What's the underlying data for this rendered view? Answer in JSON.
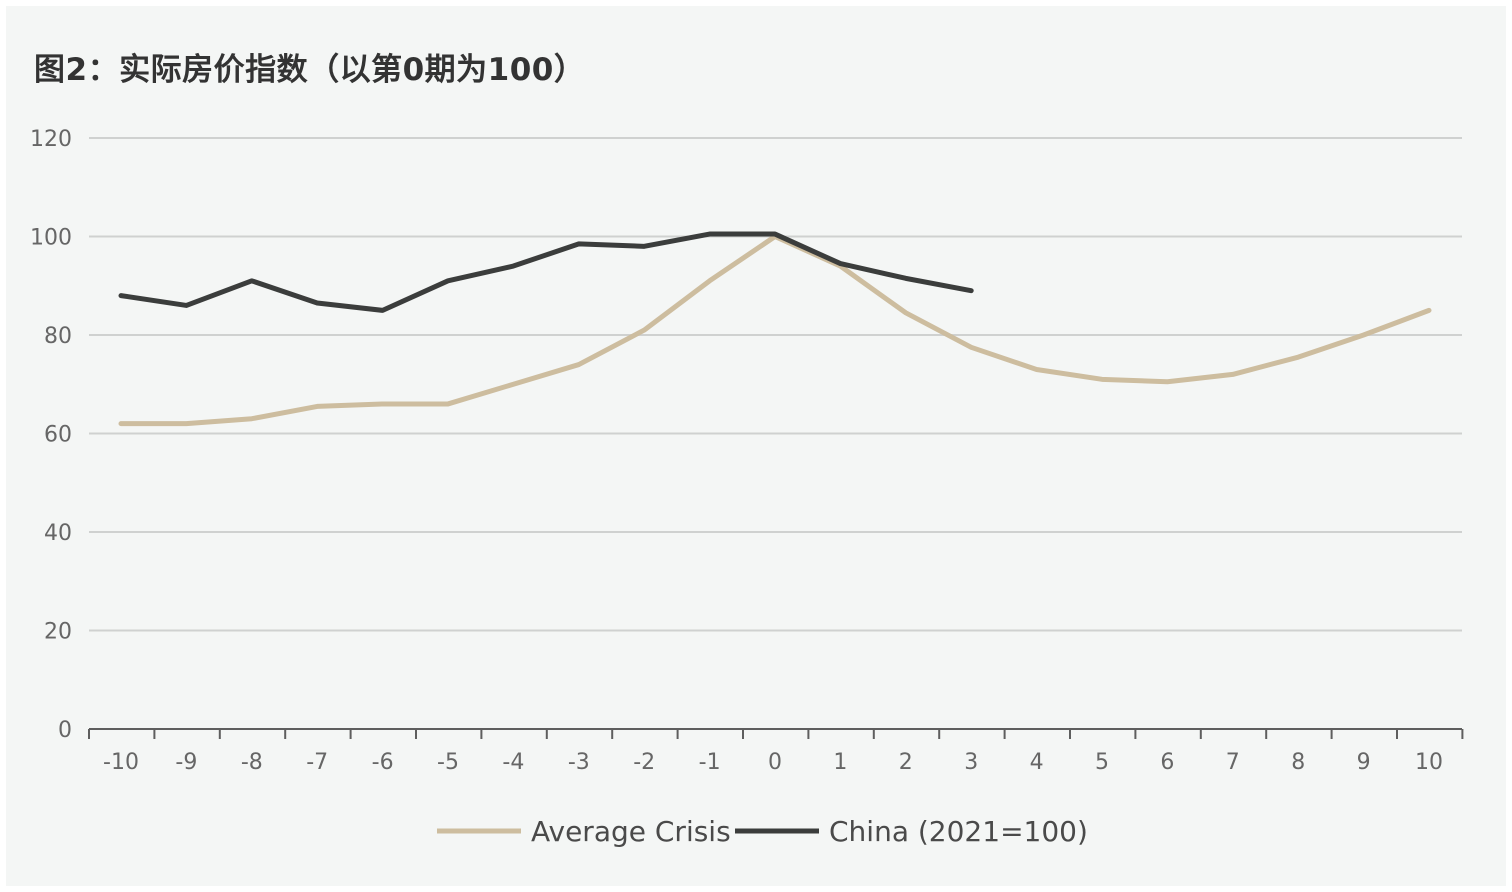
{
  "title": "图2：实际房价指数（以第0期为100）",
  "colors": {
    "average": "#cdbd9f",
    "china": "#3b3d3c",
    "grid": "#cfd1d0",
    "axis": "#5e5e5e",
    "background": "#f4f6f5"
  },
  "chart_data": {
    "type": "line",
    "title": "图2：实际房价指数（以第0期为100）",
    "xlabel": "",
    "ylabel": "",
    "x": [
      -10,
      -9,
      -8,
      -7,
      -6,
      -5,
      -4,
      -3,
      -2,
      -1,
      0,
      1,
      2,
      3,
      4,
      5,
      6,
      7,
      8,
      9,
      10
    ],
    "x_tick_labels": [
      "-10",
      "-9",
      "-8",
      "-7",
      "-6",
      "-5",
      "-4",
      "-3",
      "-2",
      "-1",
      "0",
      "1",
      "2",
      "3",
      "4",
      "5",
      "6",
      "7",
      "8",
      "9",
      "10"
    ],
    "ylim": [
      0,
      120
    ],
    "y_ticks": [
      0,
      20,
      40,
      60,
      80,
      100,
      120
    ],
    "y_tick_labels": [
      "0",
      "20",
      "40",
      "60",
      "80",
      "100",
      "120"
    ],
    "grid": true,
    "legend": "bottom",
    "series": [
      {
        "name": "Average Crisis",
        "color": "#cdbd9f",
        "x": [
          -10,
          -9,
          -8,
          -7,
          -6,
          -5,
          -4,
          -3,
          -2,
          -1,
          0,
          1,
          2,
          3,
          4,
          5,
          6,
          7,
          8,
          9,
          10
        ],
        "values": [
          62,
          62,
          63,
          65.5,
          66,
          66,
          70,
          74,
          81,
          91,
          100,
          94,
          84.5,
          77.5,
          73,
          71,
          70.5,
          72,
          75.5,
          80,
          85
        ]
      },
      {
        "name": "China (2021=100)",
        "color": "#3b3d3c",
        "x": [
          -10,
          -9,
          -8,
          -7,
          -6,
          -5,
          -4,
          -3,
          -2,
          -1,
          0,
          1,
          2,
          3
        ],
        "values": [
          88,
          86,
          91,
          86.5,
          85,
          91,
          94,
          98.5,
          98,
          100.5,
          100.5,
          94.5,
          91.5,
          89
        ]
      }
    ]
  }
}
